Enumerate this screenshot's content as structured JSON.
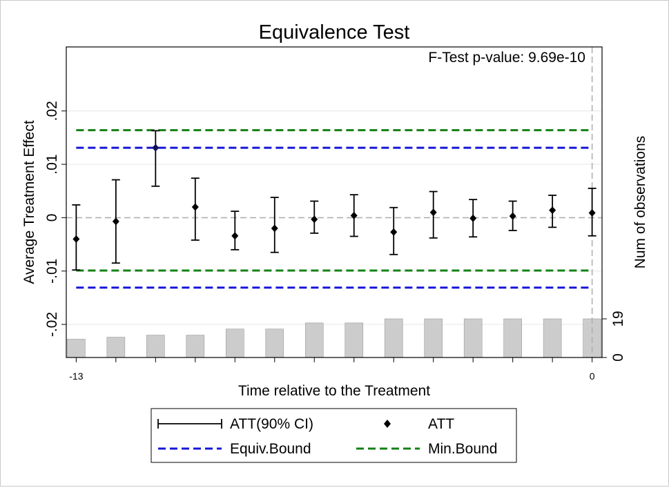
{
  "chart_data": {
    "type": "scatter",
    "title": "Equivalence Test",
    "annotation": "F-Test p-value: 9.69e-10",
    "xlabel": "Time relative to the Treatment",
    "ylabel": "Average Treatment Effect",
    "y2label": "Num of observations",
    "xlim": [
      -13.25,
      0.25
    ],
    "ylim": [
      -0.0262,
      0.032
    ],
    "x_tick_labels": [
      {
        "x": -13,
        "label": "-13"
      },
      {
        "x": 0,
        "label": "0"
      }
    ],
    "y_ticks": [
      {
        "v": 0.02,
        "label": ".02"
      },
      {
        "v": 0.01,
        "label": ".01"
      },
      {
        "v": 0,
        "label": "0"
      },
      {
        "v": -0.01,
        "label": "-.01"
      },
      {
        "v": -0.02,
        "label": "-.02"
      }
    ],
    "y2_ticks": [
      {
        "v": 0,
        "label": "0"
      },
      {
        "v": 19,
        "label": "19"
      }
    ],
    "y2_max": 19,
    "att": [
      {
        "x": -13,
        "est": -0.004,
        "lo": -0.0098,
        "hi": 0.0024
      },
      {
        "x": -12,
        "est": -0.0007,
        "lo": -0.0085,
        "hi": 0.0071
      },
      {
        "x": -11,
        "est": 0.0131,
        "lo": 0.0059,
        "hi": 0.0163
      },
      {
        "x": -10,
        "est": 0.002,
        "lo": -0.0042,
        "hi": 0.0074
      },
      {
        "x": -9,
        "est": -0.0034,
        "lo": -0.006,
        "hi": 0.0012
      },
      {
        "x": -8,
        "est": -0.002,
        "lo": -0.0065,
        "hi": 0.0038
      },
      {
        "x": -7,
        "est": -0.0003,
        "lo": -0.0029,
        "hi": 0.0031
      },
      {
        "x": -6,
        "est": 0.0004,
        "lo": -0.0035,
        "hi": 0.0043
      },
      {
        "x": -5,
        "est": -0.0027,
        "lo": -0.0069,
        "hi": 0.0019
      },
      {
        "x": -4,
        "est": 0.001,
        "lo": -0.0038,
        "hi": 0.0049
      },
      {
        "x": -3,
        "est": -0.0001,
        "lo": -0.0036,
        "hi": 0.0034
      },
      {
        "x": -2,
        "est": 0.0003,
        "lo": -0.0024,
        "hi": 0.0031
      },
      {
        "x": -1,
        "est": 0.0014,
        "lo": -0.0018,
        "hi": 0.0042
      },
      {
        "x": 0,
        "est": 0.0009,
        "lo": -0.0034,
        "hi": 0.0055
      }
    ],
    "observations": [
      {
        "x": -13,
        "n": 9
      },
      {
        "x": -12,
        "n": 10
      },
      {
        "x": -11,
        "n": 11
      },
      {
        "x": -10,
        "n": 11
      },
      {
        "x": -9,
        "n": 14
      },
      {
        "x": -8,
        "n": 14
      },
      {
        "x": -7,
        "n": 17
      },
      {
        "x": -6,
        "n": 17
      },
      {
        "x": -5,
        "n": 19
      },
      {
        "x": -4,
        "n": 19
      },
      {
        "x": -3,
        "n": 19
      },
      {
        "x": -2,
        "n": 19
      },
      {
        "x": -1,
        "n": 19
      },
      {
        "x": 0,
        "n": 19
      }
    ],
    "equiv_bound": [
      -0.0131,
      0.0131
    ],
    "min_bound": [
      -0.0099,
      0.0164
    ],
    "colors": {
      "equiv": "#1515d8",
      "min": "#138013",
      "bars": "#cccccc",
      "bar_edge": "#9a9a9a",
      "reference": "#b0b0b0",
      "grid": "#e6e6e6"
    },
    "legend": {
      "placement": "bottom-center",
      "ci_label": "ATT(90% CI)",
      "att_label": "ATT",
      "equiv_label": "Equiv.Bound",
      "min_label": "Min.Bound"
    }
  }
}
